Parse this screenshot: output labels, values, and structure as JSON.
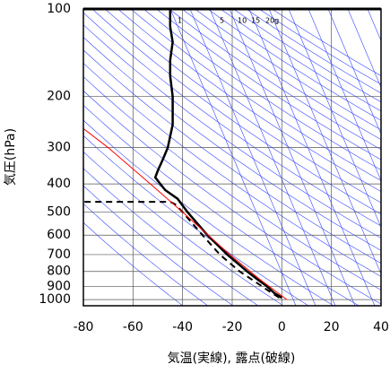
{
  "chart_data": {
    "type": "profile",
    "xlabel": "気温(実線), 露点(破線)",
    "ylabel": "気圧(hPa)",
    "xlim": [
      -80,
      40
    ],
    "xticks": [
      -80,
      -60,
      -40,
      -20,
      0,
      20,
      40
    ],
    "ylim": [
      1050,
      100
    ],
    "yticks": [
      100,
      200,
      300,
      400,
      500,
      600,
      700,
      800,
      900,
      1000
    ],
    "yscale": "log",
    "grid": true,
    "mixing_ratio_labels": [
      "1",
      "5",
      "10",
      "15",
      "20g"
    ],
    "series": [
      {
        "color": "#000000",
        "dash": false,
        "pressure": [
          985,
          950,
          900,
          850,
          800,
          700,
          600,
          500,
          450,
          420,
          400,
          380,
          360,
          330,
          300,
          250,
          200,
          170,
          150,
          130,
          115,
          100
        ],
        "temperature": [
          0,
          -3,
          -6,
          -10,
          -14,
          -22,
          -30,
          -38,
          -42,
          -47,
          -49,
          -51,
          -50,
          -48,
          -46,
          -44,
          -44,
          -45,
          -45,
          -44,
          -45,
          -45
        ]
      },
      {
        "color": "#000000",
        "dash": true,
        "pressure": [
          985,
          950,
          900,
          800,
          700,
          600,
          500,
          470,
          461,
          461
        ],
        "temperature": [
          -1,
          -4,
          -8,
          -17,
          -25,
          -32,
          -40,
          -43,
          -45,
          -80
        ]
      },
      {
        "color": "#ff0000",
        "dash": false,
        "pressure": [
          1000,
          850,
          700,
          500,
          400,
          300,
          258
        ],
        "temperature": [
          2,
          -9,
          -21,
          -40,
          -53,
          -70,
          -80
        ]
      }
    ]
  }
}
